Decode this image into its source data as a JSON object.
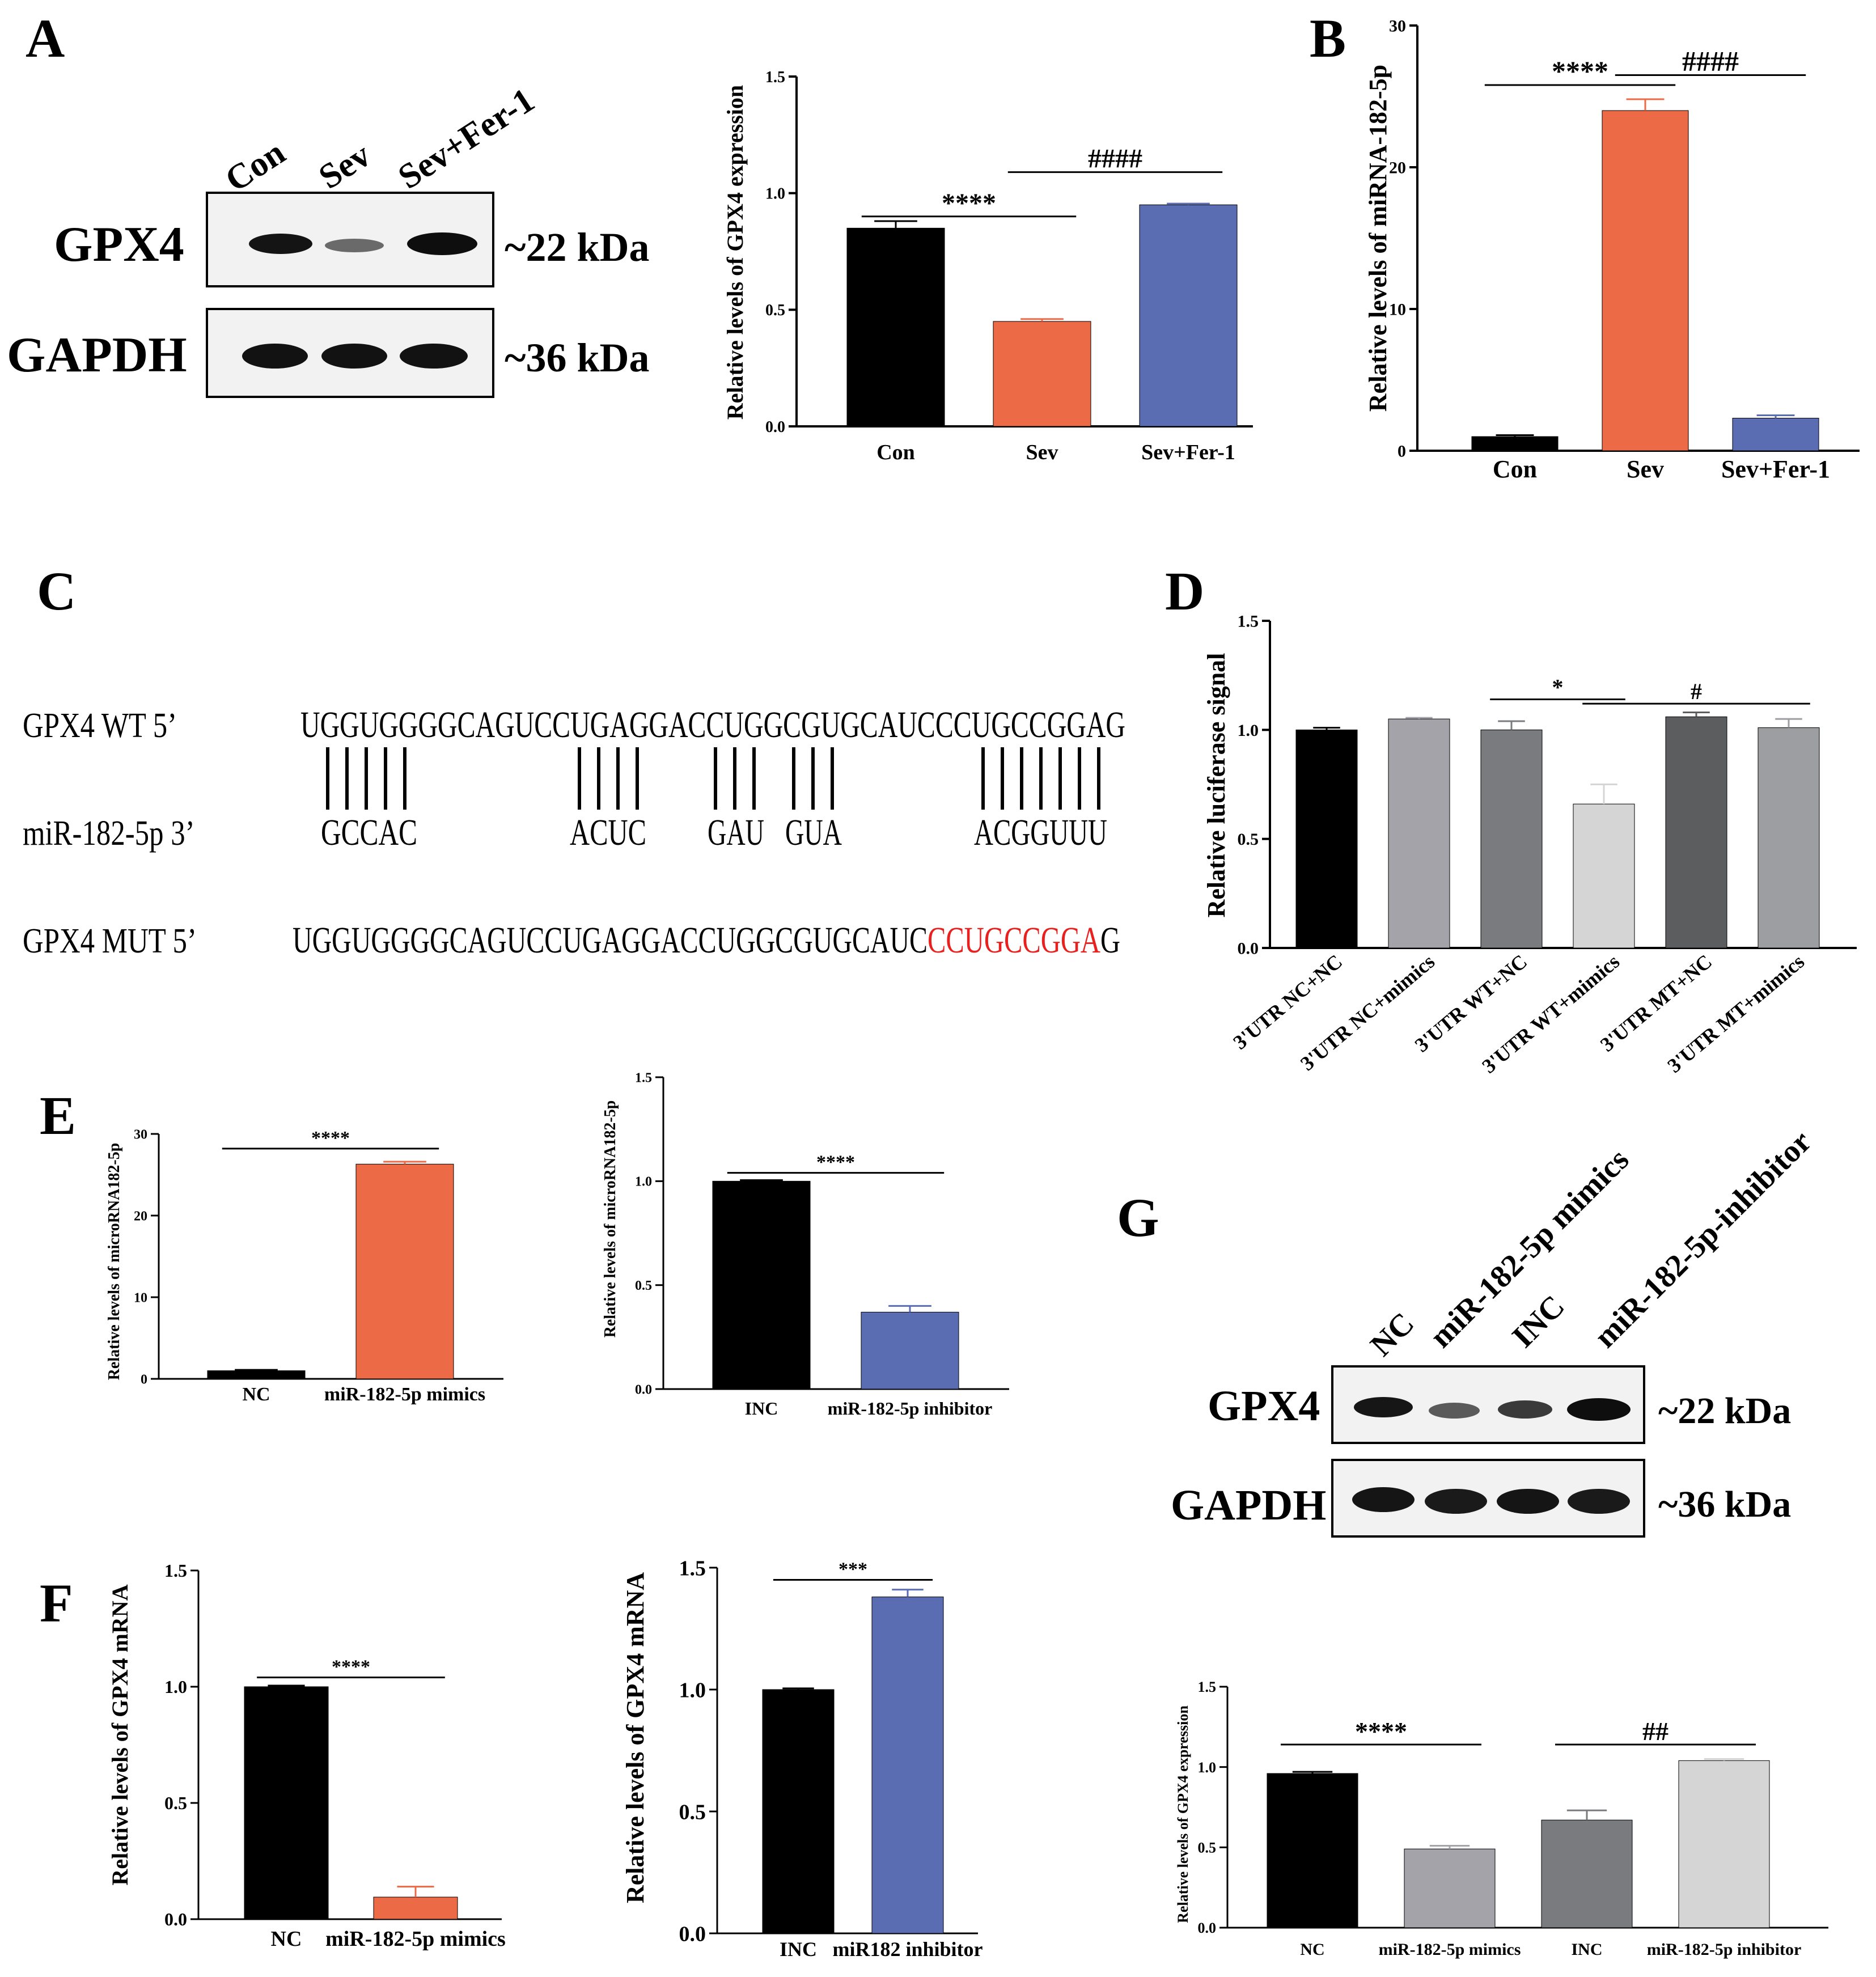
{
  "colors": {
    "black": "#000000",
    "orange": "#ec6a45",
    "blue": "#5b6db2",
    "gray_light": "#a3a3a9",
    "gray_mid": "#7a7b7e",
    "gray_pale": "#d5d5d5",
    "gray_dark": "#5c5d5f",
    "gray_mimic": "#9c9ea2",
    "red_seq": "#e8201e"
  },
  "panels": {
    "A": "A",
    "B": "B",
    "C": "C",
    "D": "D",
    "E": "E",
    "F": "F",
    "G": "G"
  },
  "blot_A": {
    "lanes": [
      "Con",
      "Sev",
      "Sev+Fer-1"
    ],
    "rows": [
      {
        "name": "GPX4",
        "size": "~22 kDa"
      },
      {
        "name": "GAPDH",
        "size": "~36 kDa"
      }
    ]
  },
  "blot_G": {
    "lanes": [
      "NC",
      "miR-182-5p mimics",
      "INC",
      "miR-182-5p-inhibitor"
    ],
    "rows": [
      {
        "name": "GPX4",
        "size": "~22 kDa"
      },
      {
        "name": "GAPDH",
        "size": "~36 kDa"
      }
    ]
  },
  "sequences": {
    "wt_label": "GPX4 WT  5’",
    "wt_seq": "UGGUGGGGCAGUCCUGAGGACCUGGCGUGCAUCCCUGCCGGAG",
    "mir_label": "miR-182-5p 3’",
    "mir_parts": [
      "GCCAC",
      "ACUC",
      "GAU",
      "GUA",
      "ACGGUUU"
    ],
    "mut_label": "GPX4 MUT 5’",
    "mut_seq_normal": "UGGUGGGGCAGUCCUGAGGACCUGGCGUGCAUC",
    "mut_seq_red": "CCUGCCGGA",
    "mut_seq_tail": "G"
  },
  "chart_data": [
    {
      "id": "A",
      "type": "bar",
      "ylabel": "Relative levels of GPX4 expression",
      "categories": [
        "Con",
        "Sev",
        "Sev+Fer-1"
      ],
      "values": [
        0.85,
        0.45,
        0.95
      ],
      "errors": [
        0.03,
        0.01,
        0.005
      ],
      "colors": [
        "#000000",
        "#ec6a45",
        "#5b6db2"
      ],
      "ylim": [
        0,
        1.5
      ],
      "ticks": [
        "0.0",
        "0.5",
        "1.0",
        "1.5"
      ],
      "tick_values": [
        0,
        0.5,
        1.0,
        1.5
      ],
      "sig": [
        {
          "label": "****",
          "from": 0,
          "to": 1,
          "y": 0.9
        },
        {
          "label": "####",
          "from": 1,
          "to": 2,
          "y": 1.09
        }
      ]
    },
    {
      "id": "B",
      "type": "bar",
      "ylabel": "Relative levels of miRNA-182-5p",
      "categories": [
        "Con",
        "Sev",
        "Sev+Fer-1"
      ],
      "values": [
        1.0,
        24.0,
        2.3
      ],
      "errors": [
        0.1,
        0.8,
        0.2
      ],
      "colors": [
        "#000000",
        "#ec6a45",
        "#5b6db2"
      ],
      "ylim": [
        0,
        30
      ],
      "ticks": [
        "0",
        "10",
        "20",
        "30"
      ],
      "tick_values": [
        0,
        10,
        20,
        30
      ],
      "sig": [
        {
          "label": "****",
          "from": 0,
          "to": 1,
          "y": 25.8
        },
        {
          "label": "####",
          "from": 1,
          "to": 2,
          "y": 26.5
        }
      ]
    },
    {
      "id": "D",
      "type": "bar",
      "ylabel": "Relative luciferase signal",
      "categories": [
        "3'UTR NC+NC",
        "3'UTR NC+mimics",
        "3'UTR WT+NC",
        "3'UTR WT+mimics",
        "3'UTR MT+NC",
        "3'UTR MT+mimics"
      ],
      "values": [
        1.0,
        1.05,
        1.0,
        0.66,
        1.06,
        1.01
      ],
      "errors": [
        0.01,
        0.005,
        0.04,
        0.09,
        0.02,
        0.04
      ],
      "colors": [
        "#000000",
        "#a3a3a9",
        "#7a7b7e",
        "#d5d5d5",
        "#5c5d5f",
        "#9c9ea2"
      ],
      "ylim": [
        0,
        1.5
      ],
      "ticks": [
        "0.0",
        "0.5",
        "1.0",
        "1.5"
      ],
      "tick_values": [
        0,
        0.5,
        1.0,
        1.5
      ],
      "sig": [
        {
          "label": "*",
          "from": 2,
          "to": 3,
          "y": 1.14
        },
        {
          "label": "#",
          "from": 3,
          "to": 5,
          "y": 1.12
        }
      ]
    },
    {
      "id": "E1",
      "type": "bar",
      "ylabel": "Relative levels of microRNA182-5p",
      "categories": [
        "NC",
        "miR-182-5p mimics"
      ],
      "values": [
        1.0,
        26.3
      ],
      "errors": [
        0.1,
        0.3
      ],
      "colors": [
        "#000000",
        "#ec6a45"
      ],
      "ylim": [
        0,
        30
      ],
      "ticks": [
        "0",
        "10",
        "20",
        "30"
      ],
      "tick_values": [
        0,
        10,
        20,
        30
      ],
      "sig": [
        {
          "label": "****",
          "from": 0,
          "to": 1,
          "y": 28.2
        }
      ]
    },
    {
      "id": "E2",
      "type": "bar",
      "ylabel": "Relative levels of microRNA182-5p",
      "categories": [
        "INC",
        "miR-182-5p inhibitor"
      ],
      "values": [
        1.0,
        0.37
      ],
      "errors": [
        0.005,
        0.03
      ],
      "colors": [
        "#000000",
        "#5b6db2"
      ],
      "ylim": [
        0,
        1.5
      ],
      "ticks": [
        "0.0",
        "0.5",
        "1.0",
        "1.5"
      ],
      "tick_values": [
        0,
        0.5,
        1.0,
        1.5
      ],
      "sig": [
        {
          "label": "****",
          "from": 0,
          "to": 1,
          "y": 1.04
        }
      ]
    },
    {
      "id": "F1",
      "type": "bar",
      "ylabel": "Relative levels of GPX4 mRNA",
      "categories": [
        "NC",
        "miR-182-5p mimics"
      ],
      "values": [
        1.0,
        0.095
      ],
      "errors": [
        0.005,
        0.045
      ],
      "colors": [
        "#000000",
        "#ec6a45"
      ],
      "ylim": [
        0,
        1.5
      ],
      "ticks": [
        "0.0",
        "0.5",
        "1.0",
        "1.5"
      ],
      "tick_values": [
        0,
        0.5,
        1.0,
        1.5
      ],
      "sig": [
        {
          "label": "****",
          "from": 0,
          "to": 1,
          "y": 1.04
        }
      ]
    },
    {
      "id": "F2",
      "type": "bar",
      "ylabel": "Relative levels of GPX4 mRNA",
      "categories": [
        "INC",
        "miR182 inhibitor"
      ],
      "values": [
        1.0,
        1.38
      ],
      "errors": [
        0.005,
        0.03
      ],
      "colors": [
        "#000000",
        "#5b6db2"
      ],
      "ylim": [
        0,
        1.5
      ],
      "ticks": [
        "0.0",
        "0.5",
        "1.0",
        "1.5"
      ],
      "tick_values": [
        0,
        0.5,
        1.0,
        1.5
      ],
      "sig": [
        {
          "label": "***",
          "from": 0,
          "to": 1,
          "y": 1.45
        }
      ]
    },
    {
      "id": "G",
      "type": "bar",
      "ylabel": "Relative levels of GPX4 expression",
      "categories": [
        "NC",
        "miR-182-5p mimics",
        "INC",
        "miR-182-5p inhibitor"
      ],
      "values": [
        0.96,
        0.49,
        0.67,
        1.04
      ],
      "errors": [
        0.01,
        0.02,
        0.06,
        0.01
      ],
      "colors": [
        "#000000",
        "#a3a3a9",
        "#7a7b7e",
        "#d5d5d5"
      ],
      "ylim": [
        0,
        1.5
      ],
      "ticks": [
        "0.0",
        "0.5",
        "1.0",
        "1.5"
      ],
      "tick_values": [
        0,
        0.5,
        1.0,
        1.5
      ],
      "sig": [
        {
          "label": "****",
          "from": 0,
          "to": 1,
          "y": 1.14
        },
        {
          "label": "##",
          "from": 2,
          "to": 3,
          "y": 1.14
        }
      ]
    }
  ]
}
